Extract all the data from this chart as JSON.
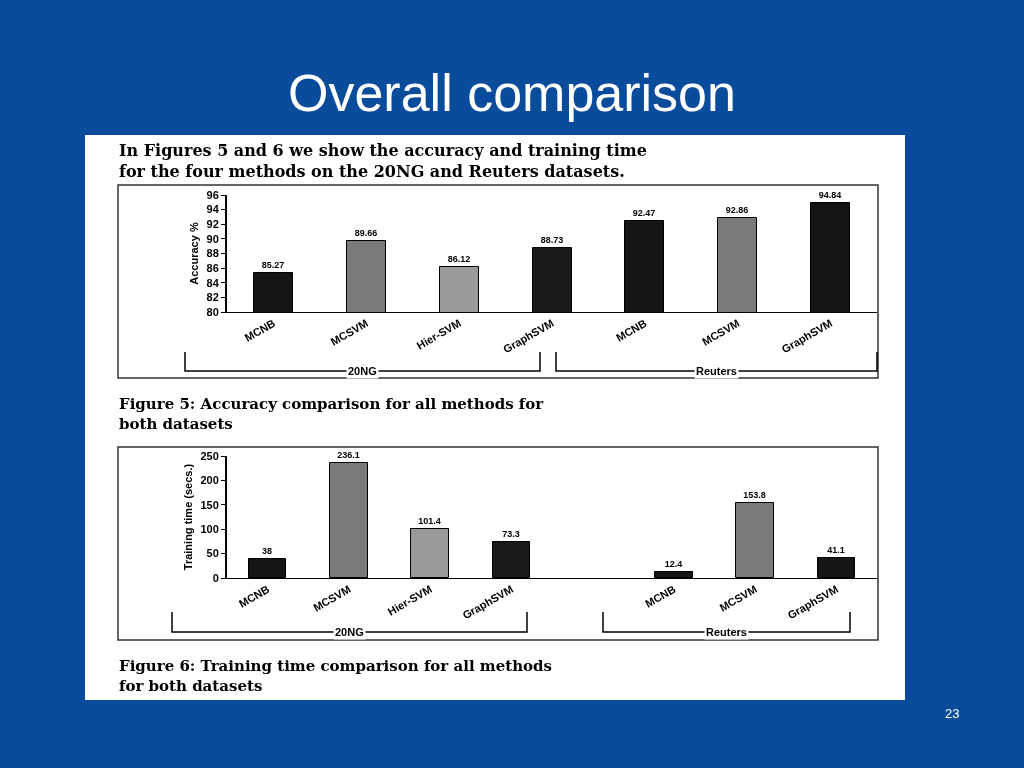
{
  "chart_data": [
    {
      "type": "bar",
      "title": "Overall comparison",
      "subtitle": "In Figures 5 and 6 we show the accuracy and training time for the four methods on the 20NG and Reuters datasets.",
      "ylabel": "Accuracy %",
      "categories": [
        "MCNB",
        "MCSVM",
        "Hier-SVM",
        "GraphSVM",
        "MCNB",
        "MCSVM",
        "GraphSVM"
      ],
      "values": [
        85.27,
        89.66,
        86.12,
        88.73,
        92.47,
        92.86,
        94.84
      ],
      "colors": [
        "#151515",
        "#7a7a7a",
        "#9a9a9a",
        "#1a1a1a",
        "#151515",
        "#7a7a7a",
        "#151515"
      ],
      "ylim": [
        80,
        96
      ],
      "yticks": [
        80,
        82,
        84,
        86,
        88,
        90,
        92,
        94,
        96
      ],
      "data_labels": true,
      "annotations": [
        "20NG",
        "Reuters",
        "Figure 5: Accuracy comparison for all methods for both datasets"
      ]
    },
    {
      "type": "bar",
      "ylabel": "Training time (secs.)",
      "categories": [
        "MCNB",
        "MCSVM",
        "Hier-SVM",
        "GraphSVM",
        null,
        "MCNB",
        "MCSVM",
        "GraphSVM"
      ],
      "values": [
        38,
        236.1,
        101.4,
        73.3,
        null,
        12.4,
        153.8,
        41.1
      ],
      "colors": [
        "#151515",
        "#7a7a7a",
        "#9a9a9a",
        "#1a1a1a",
        "#ffffff",
        "#151515",
        "#7a7a7a",
        "#151515"
      ],
      "ylim": [
        0,
        250
      ],
      "yticks": [
        0,
        50,
        100,
        150,
        200,
        250
      ],
      "data_labels": true,
      "annotations": [
        "20NG",
        "Reuters",
        "Figure 6: Training time comparison for all methods for both datasets",
        "23"
      ]
    }
  ]
}
